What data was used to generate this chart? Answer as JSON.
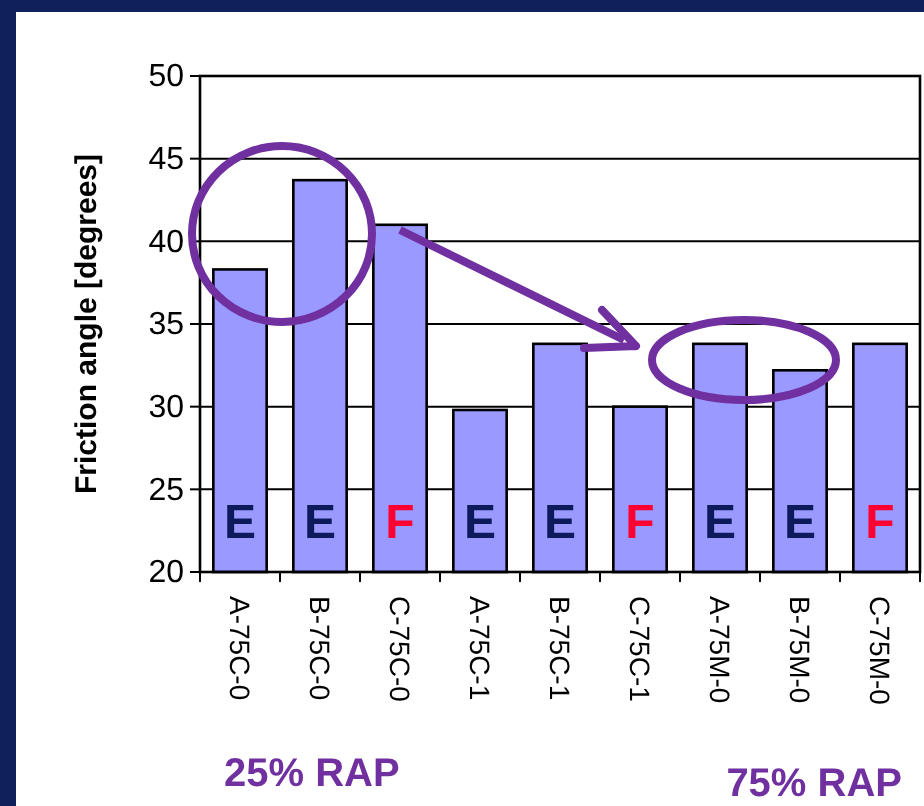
{
  "chart_data": {
    "type": "bar",
    "ylabel": "Friction angle [degrees]",
    "categories": [
      "A-75C-0",
      "B-75C-0",
      "C-75C-0",
      "A-75C-1",
      "B-75C-1",
      "C-75C-1",
      "A-75M-0",
      "B-75M-0",
      "C-75M-0"
    ],
    "values": [
      38.3,
      43.7,
      41.0,
      29.8,
      33.8,
      30.0,
      33.8,
      32.2,
      33.8
    ],
    "color": "#9999ff",
    "ylim": [
      20,
      50
    ],
    "yticks": [
      20,
      25,
      30,
      35,
      40,
      45,
      50
    ],
    "grid": "y",
    "annotations": [
      "E",
      "E",
      "F",
      "E",
      "E",
      "F",
      "E",
      "E",
      "F",
      "25% RAP",
      "75% RAP"
    ]
  }
}
